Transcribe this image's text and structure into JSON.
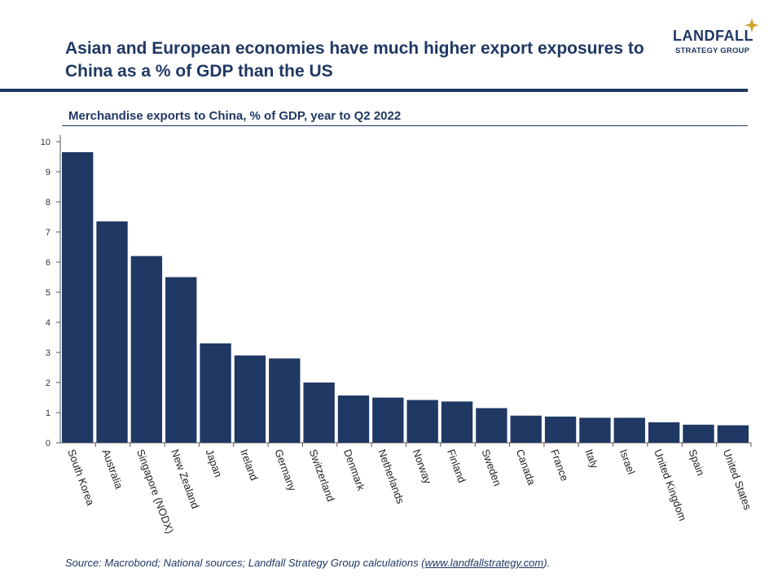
{
  "header": {
    "title": "Asian and European economies have much higher export exposures to China as a % of GDP than the US"
  },
  "logo": {
    "name": "LANDFALL",
    "tagline": "STRATEGY GROUP",
    "star_icon": "four-point-star-icon",
    "star_color": "#c9a227"
  },
  "colors": {
    "accent": "#1f3864",
    "bar": "#1f3864"
  },
  "chart_data": {
    "type": "bar",
    "title": "Merchandise exports to China, % of GDP, year to Q2 2022",
    "xlabel": "",
    "ylabel": "",
    "ylim": [
      0,
      10
    ],
    "yticks": [
      0,
      1,
      2,
      3,
      4,
      5,
      6,
      7,
      8,
      9,
      10
    ],
    "grid": false,
    "legend": "none",
    "categories": [
      "South Korea",
      "Australia",
      "Singapore (NODX)",
      "New Zealand",
      "Japan",
      "Ireland",
      "Germany",
      "Switzerland",
      "Denmark",
      "Netherlands",
      "Norway",
      "Finland",
      "Sweden",
      "Canada",
      "France",
      "Italy",
      "Israel",
      "United Kingdom",
      "Spain",
      "United States"
    ],
    "values": [
      9.65,
      7.35,
      6.2,
      5.5,
      3.3,
      2.9,
      2.8,
      2.0,
      1.57,
      1.5,
      1.42,
      1.37,
      1.15,
      0.9,
      0.87,
      0.83,
      0.83,
      0.68,
      0.6,
      0.58
    ]
  },
  "footer": {
    "source_prefix": "Source: Macrobond; National sources; Landfall Strategy Group calculations (",
    "source_link": "www.landfallstrategy.com",
    "source_suffix": ")."
  }
}
